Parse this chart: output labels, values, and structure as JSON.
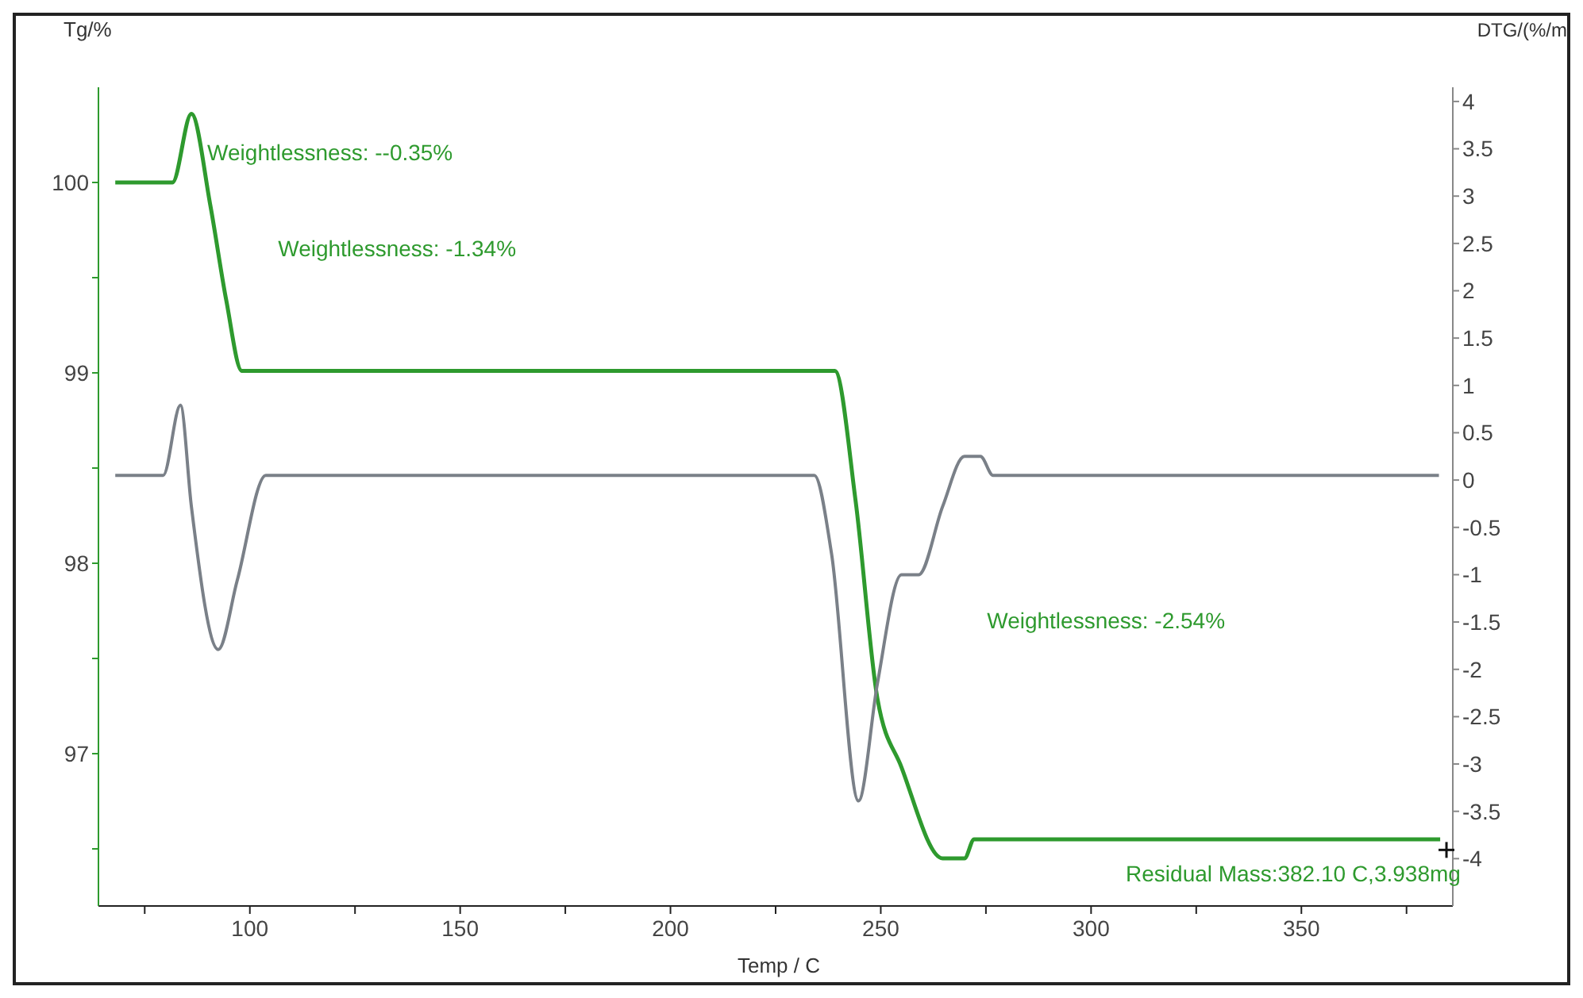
{
  "chart_data": {
    "type": "line",
    "xlabel": "Temp / C",
    "ylabel": "Tg/%",
    "y2label": "DTG/(%/m",
    "xlim": [
      64,
      386
    ],
    "xticks": [
      {
        "value": 75,
        "label": null
      },
      100,
      {
        "value": 125,
        "label": null
      },
      150,
      {
        "value": 175,
        "label": null
      },
      200,
      {
        "value": 225,
        "label": null
      },
      250,
      {
        "value": 275,
        "label": null
      },
      300,
      {
        "value": 325,
        "label": null
      },
      350,
      {
        "value": 375,
        "label": null
      }
    ],
    "ylim": [
      96.2,
      100.5
    ],
    "yticks": [
      {
        "value": 96.5,
        "label": null
      },
      97,
      {
        "value": 97.5,
        "label": null
      },
      98,
      {
        "value": 98.5,
        "label": null
      },
      99,
      {
        "value": 99.5,
        "label": null
      },
      100
    ],
    "y2lim": [
      -4.5,
      4.15
    ],
    "y2ticks": [
      -4,
      -3.5,
      -3,
      -2.5,
      -2,
      -1.5,
      -1,
      -0.5,
      0,
      0.5,
      1,
      1.5,
      2,
      2.5,
      3,
      3.5,
      4
    ],
    "marker": "none",
    "line_style": "solid",
    "series": [
      {
        "color": "#2e9a2e",
        "x": [
          68,
          81.6,
          86.1,
          90.6,
          94.4,
          98.1,
          239.1,
          244,
          249.2,
          254.9,
          264.7,
          269.9,
          272.2,
          383
        ],
        "values": [
          100,
          100,
          100.36,
          99.88,
          99.38,
          99.01,
          99.01,
          98.33,
          97.29,
          96.93,
          96.45,
          96.45,
          96.55,
          96.55
        ]
      },
      {
        "color": "#7a8088",
        "axis": "y2",
        "x": [
          68,
          79.4,
          83.5,
          86.1,
          92.5,
          97,
          103.8,
          234.2,
          238.3,
          244.7,
          249.2,
          254.9,
          259,
          264.7,
          269.9,
          273.7,
          276.7,
          382.7
        ],
        "values": [
          0.05,
          0.05,
          0.79,
          -0.28,
          -1.79,
          -1.06,
          0.05,
          0.05,
          -0.78,
          -3.39,
          -2.15,
          -1,
          -1,
          -0.28,
          0.25,
          0.25,
          0.05,
          0.05
        ]
      }
    ],
    "annotations": [
      "Weightlessness: --0.35%",
      "Weightlessness: -1.34%",
      "Weightlessness: -2.54%",
      "Residual Mass:382.10 C,3.938mg"
    ]
  }
}
